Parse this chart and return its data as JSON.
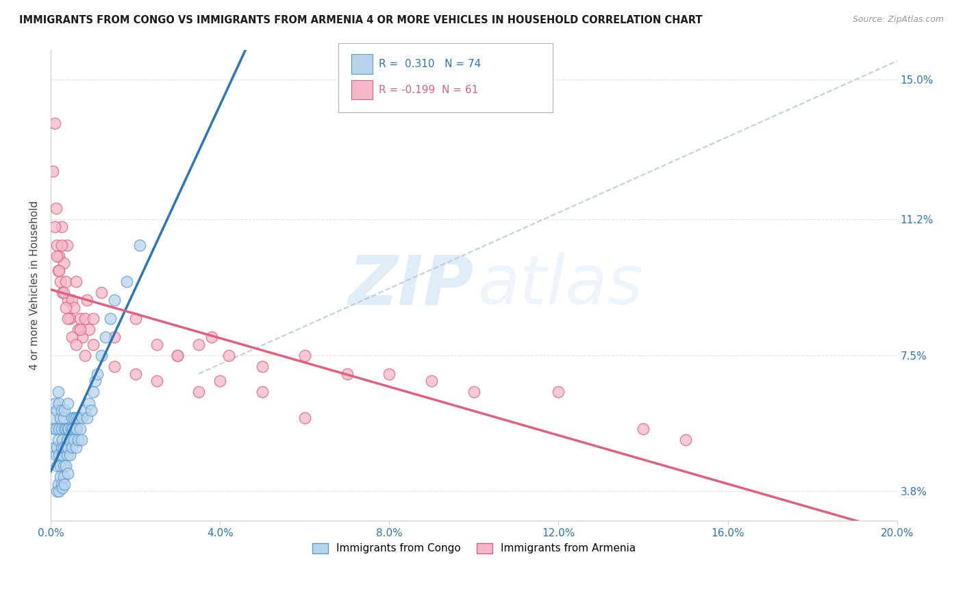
{
  "title": "IMMIGRANTS FROM CONGO VS IMMIGRANTS FROM ARMENIA 4 OR MORE VEHICLES IN HOUSEHOLD CORRELATION CHART",
  "source": "Source: ZipAtlas.com",
  "xmin": 0.0,
  "xmax": 20.0,
  "ymin": 3.0,
  "ymax": 15.8,
  "yticks": [
    3.8,
    7.5,
    11.2,
    15.0
  ],
  "ytick_labels": [
    "3.8%",
    "7.5%",
    "11.2%",
    "15.0%"
  ],
  "xticks": [
    0.0,
    4.0,
    8.0,
    12.0,
    16.0,
    20.0
  ],
  "xtick_labels": [
    "0.0%",
    "4.0%",
    "8.0%",
    "12.0%",
    "16.0%",
    "20.0%"
  ],
  "congo_color": "#b8d4ea",
  "congo_edge": "#5b9bd5",
  "armenia_color": "#f4b8c8",
  "armenia_edge": "#e06080",
  "congo_line_color": "#2e75b6",
  "armenia_line_color": "#e06080",
  "ref_line_color": "#b0c4d8",
  "legend_R_congo": "R =  0.310",
  "legend_N_congo": "N = 74",
  "legend_R_armenia": "R = -0.199",
  "legend_N_armenia": "N = 61",
  "watermark_zip": "ZIP",
  "watermark_atlas": "atlas",
  "background_color": "#ffffff",
  "grid_color": "#e0e0e0",
  "congo_x": [
    0.05,
    0.08,
    0.1,
    0.1,
    0.12,
    0.13,
    0.15,
    0.15,
    0.15,
    0.18,
    0.18,
    0.2,
    0.2,
    0.2,
    0.22,
    0.22,
    0.25,
    0.25,
    0.25,
    0.28,
    0.28,
    0.3,
    0.3,
    0.3,
    0.32,
    0.32,
    0.35,
    0.35,
    0.38,
    0.38,
    0.4,
    0.4,
    0.4,
    0.42,
    0.45,
    0.45,
    0.48,
    0.5,
    0.5,
    0.52,
    0.55,
    0.55,
    0.58,
    0.6,
    0.6,
    0.62,
    0.65,
    0.65,
    0.7,
    0.72,
    0.75,
    0.8,
    0.85,
    0.9,
    0.95,
    1.0,
    1.05,
    1.1,
    1.2,
    1.3,
    1.4,
    1.5,
    1.8,
    2.1,
    0.15,
    0.18,
    0.2,
    0.22,
    0.25,
    0.28,
    0.3,
    0.32,
    0.35,
    0.4
  ],
  "congo_y": [
    5.8,
    5.5,
    6.2,
    5.0,
    4.8,
    5.5,
    5.0,
    6.0,
    4.5,
    5.2,
    6.5,
    4.8,
    5.5,
    6.2,
    4.5,
    5.8,
    5.0,
    5.5,
    6.0,
    4.8,
    5.2,
    4.5,
    5.0,
    5.8,
    5.5,
    6.0,
    5.0,
    5.5,
    4.8,
    5.2,
    5.0,
    5.5,
    6.2,
    5.5,
    4.8,
    5.2,
    5.5,
    5.0,
    5.8,
    5.5,
    5.2,
    5.8,
    5.5,
    5.0,
    5.8,
    5.5,
    5.2,
    5.8,
    5.5,
    5.2,
    5.8,
    6.0,
    5.8,
    6.2,
    6.0,
    6.5,
    6.8,
    7.0,
    7.5,
    8.0,
    8.5,
    9.0,
    9.5,
    10.5,
    3.8,
    4.0,
    3.8,
    4.2,
    4.0,
    3.9,
    4.2,
    4.0,
    4.5,
    4.3
  ],
  "armenia_x": [
    0.05,
    0.1,
    0.12,
    0.15,
    0.18,
    0.2,
    0.22,
    0.25,
    0.28,
    0.3,
    0.35,
    0.38,
    0.4,
    0.45,
    0.5,
    0.55,
    0.6,
    0.65,
    0.7,
    0.75,
    0.8,
    0.85,
    0.9,
    1.0,
    1.2,
    1.5,
    2.0,
    2.5,
    3.0,
    3.5,
    3.8,
    4.2,
    5.0,
    6.0,
    7.0,
    8.0,
    9.0,
    10.0,
    12.0,
    14.0,
    15.0,
    0.1,
    0.15,
    0.2,
    0.25,
    0.3,
    0.35,
    0.4,
    0.5,
    0.6,
    0.7,
    0.8,
    1.0,
    1.5,
    2.0,
    2.5,
    3.0,
    3.5,
    4.0,
    5.0,
    6.0
  ],
  "armenia_y": [
    12.5,
    13.8,
    11.5,
    10.5,
    9.8,
    10.2,
    9.5,
    11.0,
    9.2,
    10.0,
    9.5,
    10.5,
    9.0,
    8.5,
    9.0,
    8.8,
    9.5,
    8.2,
    8.5,
    8.0,
    8.5,
    9.0,
    8.2,
    8.5,
    9.2,
    8.0,
    8.5,
    7.8,
    7.5,
    7.8,
    8.0,
    7.5,
    7.2,
    7.5,
    7.0,
    7.0,
    6.8,
    6.5,
    6.5,
    5.5,
    5.2,
    11.0,
    10.2,
    9.8,
    10.5,
    9.2,
    8.8,
    8.5,
    8.0,
    7.8,
    8.2,
    7.5,
    7.8,
    7.2,
    7.0,
    6.8,
    7.5,
    6.5,
    6.8,
    6.5,
    5.8
  ]
}
